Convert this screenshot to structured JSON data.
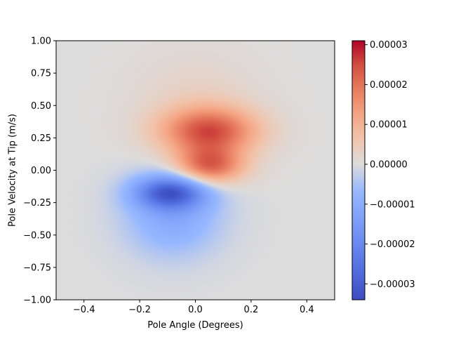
{
  "chart_data": {
    "type": "heatmap",
    "title": "",
    "xlabel": "Pole Angle (Degrees)",
    "ylabel": "Pole Velocity at Tip (m/s)",
    "xlim": [
      -0.5,
      0.5
    ],
    "ylim": [
      -1.0,
      1.0
    ],
    "x_ticks": [
      "−0.4",
      "−0.2",
      "0.0",
      "0.2",
      "0.4"
    ],
    "x_tick_values": [
      -0.4,
      -0.2,
      0.0,
      0.2,
      0.4
    ],
    "y_ticks": [
      "−1.00",
      "−0.75",
      "−0.50",
      "−0.25",
      "0.00",
      "0.25",
      "0.50",
      "0.75",
      "1.00"
    ],
    "y_tick_values": [
      -1.0,
      -0.75,
      -0.5,
      -0.25,
      0.0,
      0.25,
      0.5,
      0.75,
      1.0
    ],
    "colormap": "coolwarm",
    "colorbar_range": [
      -3.4e-05,
      3.1e-05
    ],
    "colorbar_ticks": [
      "−0.00003",
      "−0.00002",
      "−0.00001",
      "0.00000",
      "0.00001",
      "0.00002",
      "0.00003"
    ],
    "colorbar_tick_values": [
      -3e-05,
      -2e-05,
      -1e-05,
      0.0,
      1e-05,
      2e-05,
      3e-05
    ],
    "field_components": [
      {
        "cx": 0.05,
        "cy": 0.3,
        "sx": 0.12,
        "sy": 0.13,
        "amp": 2.4e-05
      },
      {
        "cx": 0.05,
        "cy": 0.03,
        "sx": 0.085,
        "sy": 0.1,
        "amp": 2.2e-05
      },
      {
        "cx": -0.09,
        "cy": -0.17,
        "sx": 0.09,
        "sy": 0.09,
        "amp": -2.6e-05
      },
      {
        "cx": -0.08,
        "cy": -0.35,
        "sx": 0.12,
        "sy": 0.22,
        "amp": -1.1e-05
      },
      {
        "cx": 0.0,
        "cy": 0.55,
        "sx": 0.15,
        "sy": 0.25,
        "amp": 3e-06
      }
    ]
  }
}
